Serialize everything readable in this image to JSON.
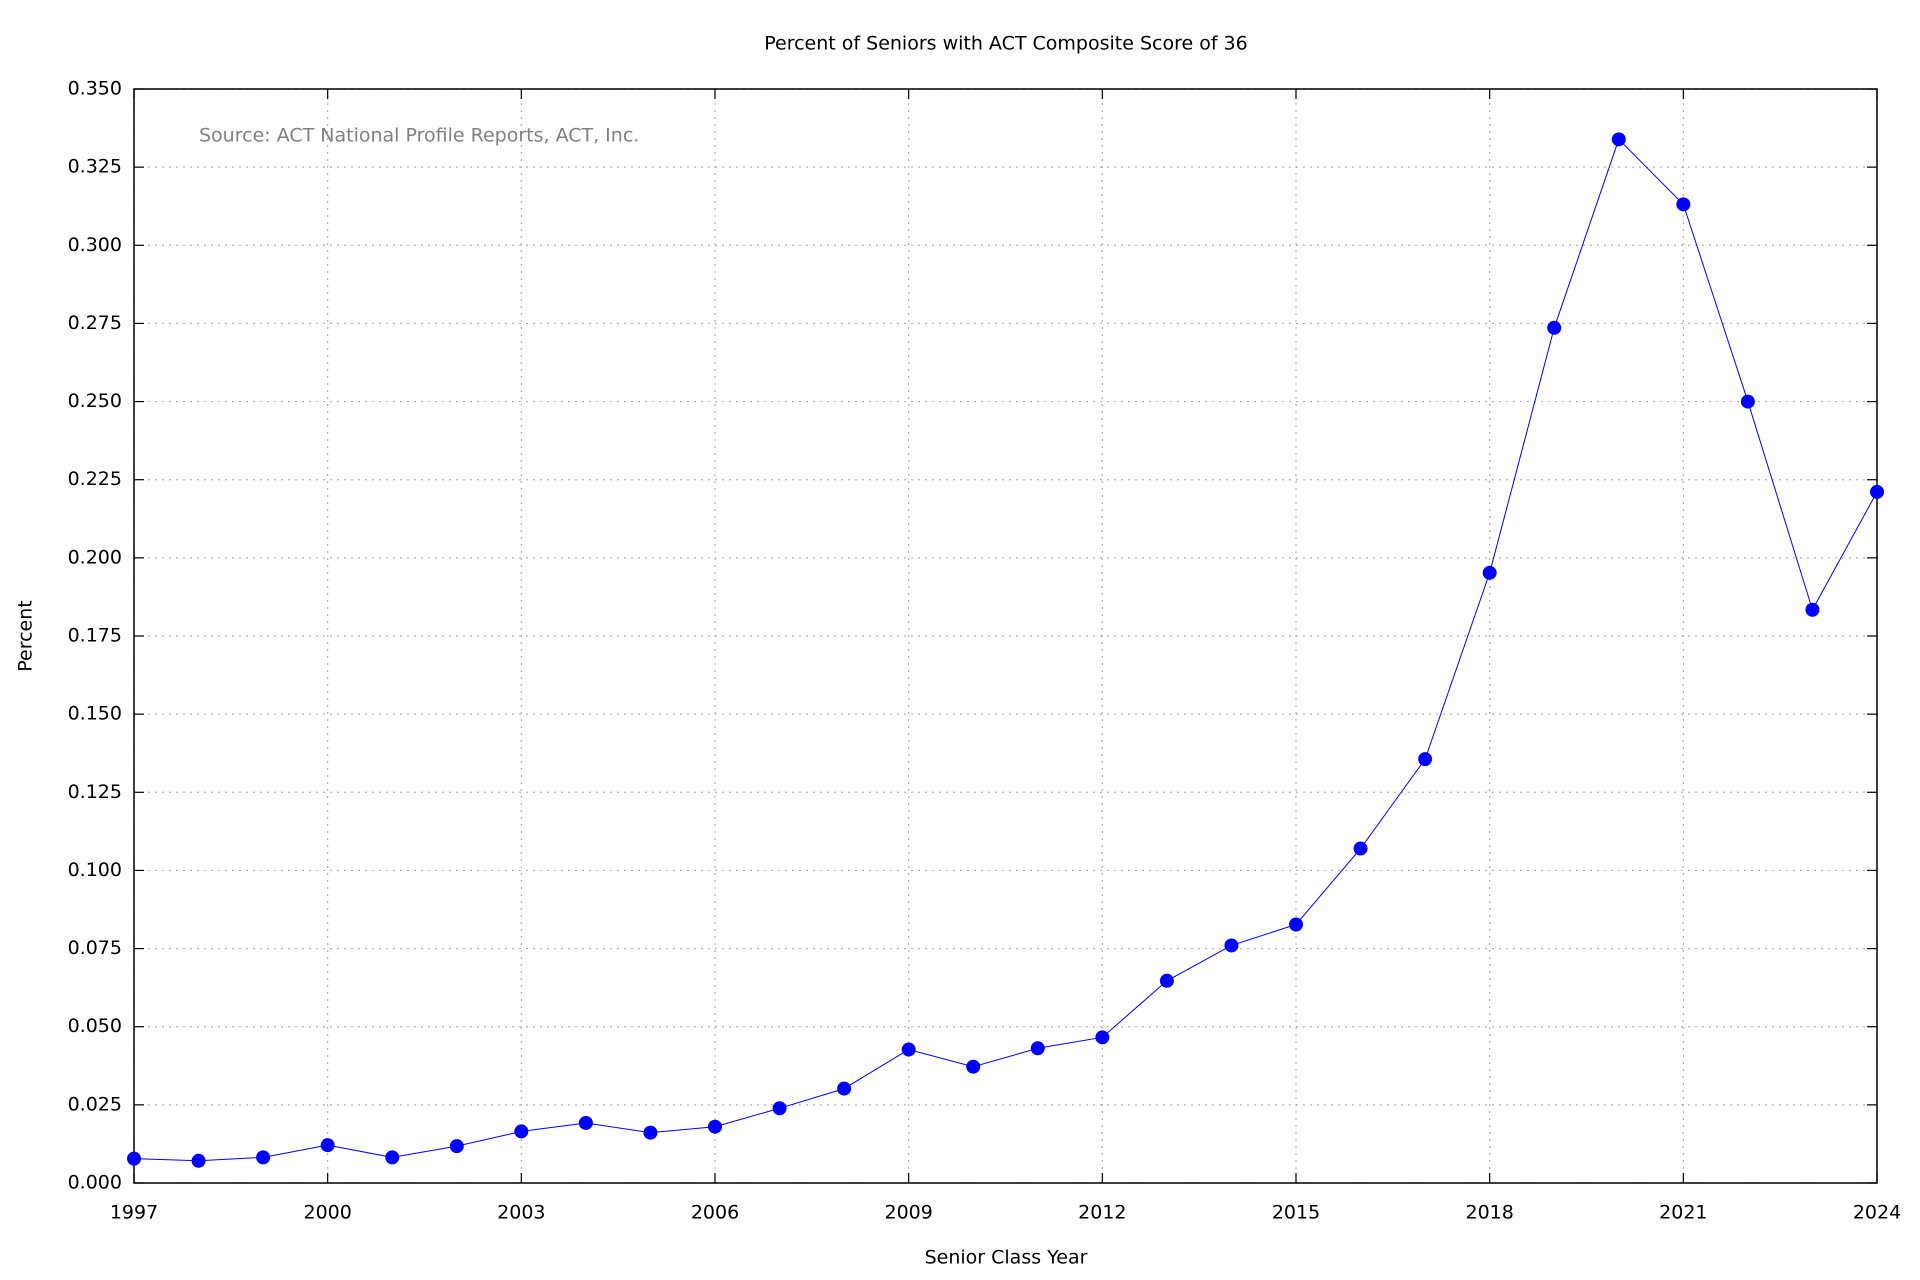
{
  "chart_data": {
    "type": "line",
    "title": "Percent of Seniors with ACT Composite Score of 36",
    "annotation": "Source: ACT National Profile Reports, ACT, Inc.",
    "x_label": "Senior Class Year",
    "y_label": "Percent",
    "x": [
      1997,
      1998,
      1999,
      2000,
      2001,
      2002,
      2003,
      2004,
      2005,
      2006,
      2007,
      2008,
      2009,
      2010,
      2011,
      2012,
      2013,
      2014,
      2015,
      2016,
      2017,
      2018,
      2019,
      2020,
      2021,
      2022,
      2023,
      2024
    ],
    "series": [
      {
        "color": "#0000ff",
        "values": [
          0.0078,
          0.0071,
          0.0082,
          0.0121,
          0.0082,
          0.0118,
          0.0165,
          0.0192,
          0.0161,
          0.018,
          0.0239,
          0.0302,
          0.0427,
          0.0372,
          0.0431,
          0.0466,
          0.0647,
          0.076,
          0.0827,
          0.107,
          0.1356,
          0.1952,
          0.2736,
          0.3339,
          0.3131,
          0.25,
          0.1834,
          0.2211
        ]
      }
    ],
    "xlim": [
      1997,
      2024
    ],
    "xticks": [
      1997,
      2000,
      2003,
      2006,
      2009,
      2012,
      2015,
      2018,
      2021,
      2024
    ],
    "ylim": [
      0,
      0.35
    ],
    "yticks": [
      {
        "value": 0,
        "label": "0.000"
      },
      {
        "value": 0.025,
        "label": "0.025"
      },
      {
        "value": 0.05,
        "label": "0.050"
      },
      {
        "value": 0.075,
        "label": "0.075"
      },
      {
        "value": 0.1,
        "label": "0.100"
      },
      {
        "value": 0.125,
        "label": "0.125"
      },
      {
        "value": 0.15,
        "label": "0.150"
      },
      {
        "value": 0.175,
        "label": "0.175"
      },
      {
        "value": 0.2,
        "label": "0.200"
      },
      {
        "value": 0.225,
        "label": "0.225"
      },
      {
        "value": 0.25,
        "label": "0.250"
      },
      {
        "value": 0.275,
        "label": "0.275"
      },
      {
        "value": 0.3,
        "label": "0.300"
      },
      {
        "value": 0.325,
        "label": "0.325"
      },
      {
        "value": 0.35,
        "label": "0.350"
      }
    ],
    "grid": true
  }
}
